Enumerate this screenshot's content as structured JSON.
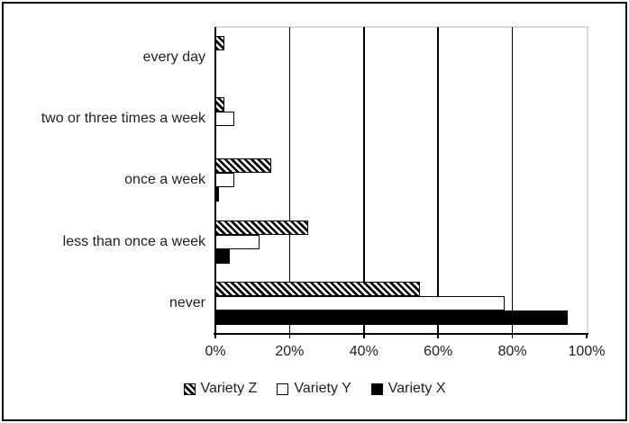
{
  "figure": {
    "background": "#ffffff",
    "outer_border_color": "#000000"
  },
  "chart_data": {
    "type": "bar",
    "orientation": "horizontal",
    "title": "",
    "xlabel": "",
    "ylabel": "",
    "xlim": [
      0,
      100
    ],
    "x_tick_values": [
      0,
      20,
      40,
      60,
      80,
      100
    ],
    "x_tick_labels": [
      "0%",
      "20%",
      "40%",
      "60%",
      "80%",
      "100%"
    ],
    "gridlines": {
      "show": true,
      "values": [
        20,
        40,
        60,
        80
      ],
      "color": "#000000"
    },
    "plot_border_color": "#d9d9d9",
    "categories": [
      "every day",
      "two or three times a week",
      "once a week",
      "less than once a week",
      "never"
    ],
    "series": [
      {
        "name": "Variety Z",
        "fill": "hatch",
        "swatch_icon": "diagonal-hatch-swatch-icon",
        "values": [
          2.5,
          2.5,
          15,
          25,
          55
        ]
      },
      {
        "name": "Variety Y",
        "fill": "white",
        "swatch_icon": "white-square-swatch-icon",
        "values": [
          0,
          5,
          5,
          12,
          78
        ]
      },
      {
        "name": "Variety X",
        "fill": "black",
        "swatch_icon": "black-square-swatch-icon",
        "values": [
          0,
          0,
          1,
          4,
          95
        ]
      }
    ],
    "legend": {
      "position": "bottom",
      "entries": [
        "Variety Z",
        "Variety Y",
        "Variety X"
      ]
    },
    "colors": {
      "bar_border": "#000000",
      "text": "#1f1f1f",
      "axis": "#000000"
    }
  }
}
